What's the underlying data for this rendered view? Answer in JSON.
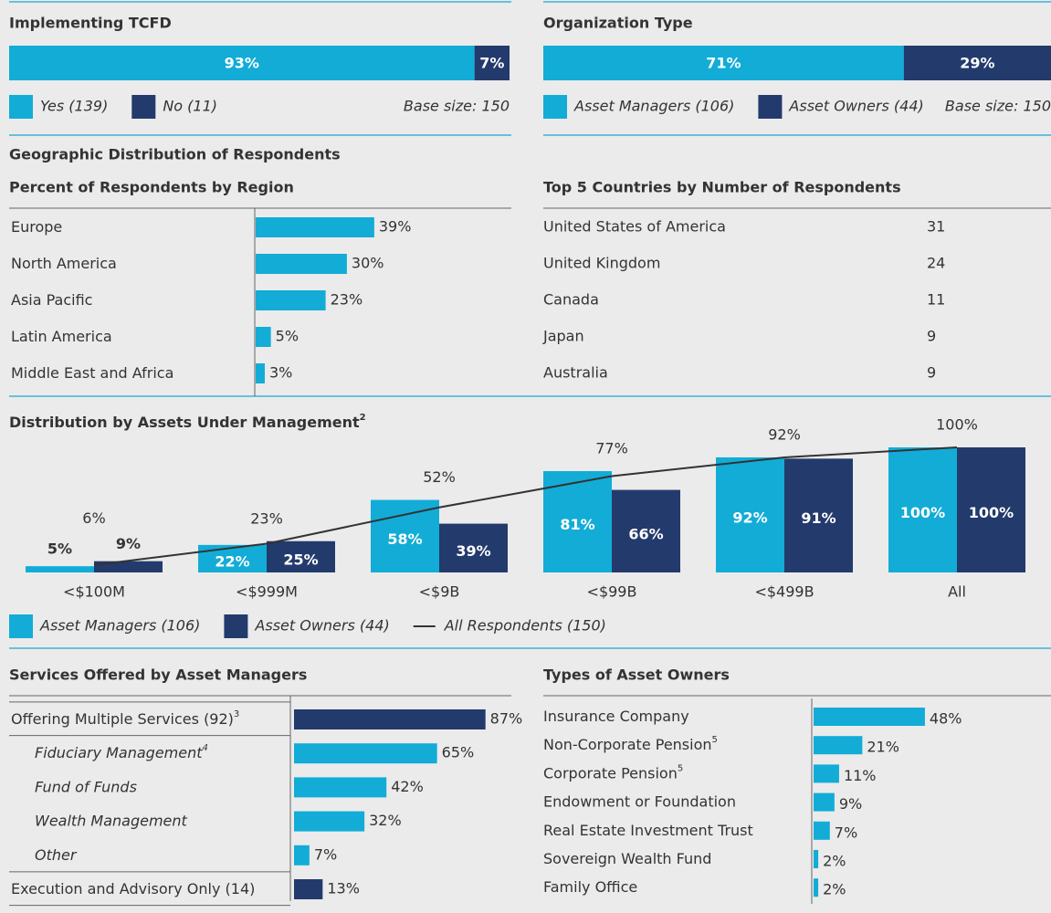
{
  "chart_data": [
    {
      "type": "stacked-bar-h",
      "title": "Implementing TCFD",
      "xlim": [
        0,
        100
      ],
      "note": "Base size: 150",
      "series": [
        {
          "name": "Yes (139)",
          "color": "#12acd7",
          "values": [
            93
          ],
          "value_labels": [
            "93%"
          ]
        },
        {
          "name": "No (11)",
          "color": "#233a6c",
          "values": [
            7
          ],
          "value_labels": [
            "7%"
          ]
        }
      ]
    },
    {
      "type": "stacked-bar-h",
      "title": "Organization Type",
      "xlim": [
        0,
        100
      ],
      "note": "Base size: 150",
      "series": [
        {
          "name": "Asset Managers (106)",
          "color": "#12acd7",
          "values": [
            71
          ],
          "value_labels": [
            "71%"
          ]
        },
        {
          "name": "Asset Owners (44)",
          "color": "#233a6c",
          "values": [
            29
          ],
          "value_labels": [
            "29%"
          ]
        }
      ]
    },
    {
      "type": "bar-h",
      "section": "Geographic Distribution of Respondents",
      "title": "Percent of Respondents by Region",
      "categories": [
        "Europe",
        "North America",
        "Asia Pacific",
        "Latin America",
        "Middle East and Africa"
      ],
      "values": [
        39,
        30,
        23,
        5,
        3
      ],
      "value_labels": [
        "39%",
        "30%",
        "23%",
        "5%",
        "3%"
      ],
      "color": "#12acd7",
      "xlim": [
        0,
        100
      ]
    },
    {
      "type": "table",
      "title": "Top 5 Countries by Number of Respondents",
      "categories": [
        "United States of America",
        "United Kingdom",
        "Canada",
        "Japan",
        "Australia"
      ],
      "values": [
        31,
        24,
        11,
        9,
        9
      ]
    },
    {
      "type": "bar-line",
      "title": "Distribution by Assets Under Management",
      "title_note": "2",
      "categories": [
        "<$100M",
        "<$999M",
        "<$9B",
        "<$99B",
        "<$499B",
        "All"
      ],
      "ylim": [
        0,
        100
      ],
      "series": [
        {
          "name": "Asset Managers (106)",
          "type": "bar",
          "color": "#12acd7",
          "values": [
            5,
            22,
            58,
            81,
            92,
            100
          ],
          "value_labels": [
            "5%",
            "22%",
            "58%",
            "81%",
            "92%",
            "100%"
          ]
        },
        {
          "name": "Asset Owners (44)",
          "type": "bar",
          "color": "#233a6c",
          "values": [
            9,
            25,
            39,
            66,
            91,
            100
          ],
          "value_labels": [
            "9%",
            "25%",
            "39%",
            "66%",
            "91%",
            "100%"
          ]
        },
        {
          "name": "All Respondents (150)",
          "type": "line",
          "color": "#333333",
          "values": [
            6,
            23,
            52,
            77,
            92,
            100
          ],
          "value_labels": [
            "6%",
            "23%",
            "52%",
            "77%",
            "92%",
            "100%"
          ]
        }
      ]
    },
    {
      "type": "bar-h",
      "title": "Services Offered by Asset Managers",
      "categories": [
        "Offering Multiple Services (92)",
        "Fiduciary Management",
        "Fund of Funds",
        "Wealth Management",
        "Other",
        "Execution and Advisory Only (14)"
      ],
      "footnotes": [
        "3",
        "4",
        null,
        null,
        null,
        null
      ],
      "levels": [
        0,
        1,
        1,
        1,
        1,
        0
      ],
      "values": [
        87,
        65,
        42,
        32,
        7,
        13
      ],
      "value_labels": [
        "87%",
        "65%",
        "42%",
        "32%",
        "7%",
        "13%"
      ],
      "colors": [
        "#233a6c",
        "#12acd7",
        "#12acd7",
        "#12acd7",
        "#12acd7",
        "#233a6c"
      ],
      "xlim": [
        0,
        100
      ]
    },
    {
      "type": "bar-h",
      "title": "Types of Asset Owners",
      "categories": [
        "Insurance Company",
        "Non-Corporate Pension",
        "Corporate Pension",
        "Endowment or Foundation",
        "Real Estate Investment Trust",
        "Sovereign Wealth Fund",
        "Family Office"
      ],
      "footnotes": [
        null,
        "5",
        "5",
        null,
        null,
        null,
        null
      ],
      "values": [
        48,
        21,
        11,
        9,
        7,
        2,
        2
      ],
      "value_labels": [
        "48%",
        "21%",
        "11%",
        "9%",
        "7%",
        "2%",
        "2%"
      ],
      "color": "#12acd7",
      "xlim": [
        0,
        100
      ]
    }
  ]
}
